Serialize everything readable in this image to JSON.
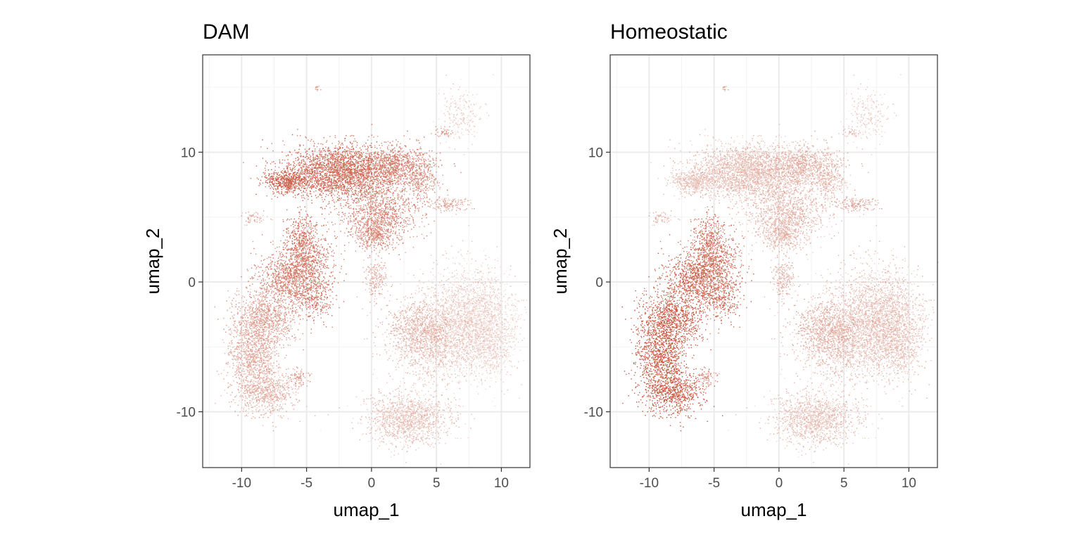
{
  "chart_data": [
    {
      "type": "scatter",
      "title": "DAM",
      "xlabel": "umap_1",
      "ylabel": "umap_2",
      "xlim": [
        -13,
        12.2
      ],
      "ylim": [
        -14.3,
        17.5
      ],
      "x_ticks": [
        -10,
        -5,
        0,
        5,
        10
      ],
      "x_tick_labels": [
        "-10",
        "-5",
        "0",
        "5",
        "10"
      ],
      "y_ticks": [
        -10,
        0,
        10
      ],
      "y_tick_labels": [
        "-10",
        "0",
        "10"
      ],
      "grid": true,
      "legend": "none",
      "color_low": "#f7f2f0",
      "color_high": "#c8553d",
      "regions": [
        {
          "x": -2.5,
          "y": 8.5,
          "sx": 2.2,
          "sy": 1.0,
          "n": 2600,
          "level": 0.82
        },
        {
          "x": -6.5,
          "y": 7.8,
          "sx": 0.9,
          "sy": 0.4,
          "n": 500,
          "level": 0.9
        },
        {
          "x": 2.0,
          "y": 9.0,
          "sx": 1.4,
          "sy": 0.8,
          "n": 800,
          "level": 0.7
        },
        {
          "x": 0.6,
          "y": 5.5,
          "sx": 1.6,
          "sy": 1.2,
          "n": 1000,
          "level": 0.68
        },
        {
          "x": 0.2,
          "y": 3.8,
          "sx": 0.7,
          "sy": 0.6,
          "n": 400,
          "level": 0.62
        },
        {
          "x": 3.8,
          "y": 7.8,
          "sx": 0.6,
          "sy": 0.6,
          "n": 220,
          "level": 0.55
        },
        {
          "x": 6.0,
          "y": 6.0,
          "sx": 1.0,
          "sy": 0.25,
          "n": 160,
          "level": 0.45
        },
        {
          "x": 6.8,
          "y": 13.0,
          "sx": 0.8,
          "sy": 1.0,
          "n": 240,
          "level": 0.2
        },
        {
          "x": 5.5,
          "y": 11.6,
          "sx": 0.4,
          "sy": 0.2,
          "n": 40,
          "level": 0.6
        },
        {
          "x": -9.0,
          "y": 5.0,
          "sx": 0.5,
          "sy": 0.25,
          "n": 60,
          "level": 0.45
        },
        {
          "x": -5.4,
          "y": 3.5,
          "sx": 0.6,
          "sy": 0.9,
          "n": 300,
          "level": 0.8
        },
        {
          "x": -5.0,
          "y": 1.5,
          "sx": 1.0,
          "sy": 1.2,
          "n": 700,
          "level": 0.78
        },
        {
          "x": -6.8,
          "y": 0.2,
          "sx": 1.1,
          "sy": 1.0,
          "n": 700,
          "level": 0.7
        },
        {
          "x": -4.5,
          "y": -1.3,
          "sx": 0.8,
          "sy": 0.8,
          "n": 300,
          "level": 0.78
        },
        {
          "x": -8.2,
          "y": -2.8,
          "sx": 1.2,
          "sy": 1.0,
          "n": 800,
          "level": 0.52
        },
        {
          "x": -9.2,
          "y": -5.5,
          "sx": 0.9,
          "sy": 1.6,
          "n": 1000,
          "level": 0.45
        },
        {
          "x": -8.2,
          "y": -8.5,
          "sx": 1.2,
          "sy": 0.9,
          "n": 700,
          "level": 0.4
        },
        {
          "x": -5.6,
          "y": -7.4,
          "sx": 0.4,
          "sy": 0.4,
          "n": 80,
          "level": 0.55
        },
        {
          "x": 0.3,
          "y": 0.2,
          "sx": 0.5,
          "sy": 0.9,
          "n": 200,
          "level": 0.42
        },
        {
          "x": 7.5,
          "y": -2.5,
          "sx": 1.8,
          "sy": 2.0,
          "n": 2000,
          "level": 0.2
        },
        {
          "x": 4.8,
          "y": -4.5,
          "sx": 1.6,
          "sy": 1.6,
          "n": 1300,
          "level": 0.3
        },
        {
          "x": 3.5,
          "y": -3.5,
          "sx": 1.2,
          "sy": 1.0,
          "n": 500,
          "level": 0.42
        },
        {
          "x": 9.0,
          "y": -4.5,
          "sx": 1.0,
          "sy": 1.6,
          "n": 800,
          "level": 0.18
        },
        {
          "x": 2.8,
          "y": -10.5,
          "sx": 1.6,
          "sy": 1.0,
          "n": 1300,
          "level": 0.3
        },
        {
          "x": -4.2,
          "y": 15.0,
          "sx": 0.15,
          "sy": 0.15,
          "n": 12,
          "level": 0.5
        }
      ]
    },
    {
      "type": "scatter",
      "title": "Homeostatic",
      "xlabel": "umap_1",
      "ylabel": "umap_2",
      "xlim": [
        -13,
        12.2
      ],
      "ylim": [
        -14.3,
        17.5
      ],
      "x_ticks": [
        -10,
        -5,
        0,
        5,
        10
      ],
      "x_tick_labels": [
        "-10",
        "-5",
        "0",
        "5",
        "10"
      ],
      "y_ticks": [
        -10,
        0,
        10
      ],
      "y_tick_labels": [
        "-10",
        "0",
        "10"
      ],
      "grid": true,
      "legend": "none",
      "color_low": "#f7f2f0",
      "color_high": "#c8553d",
      "regions": [
        {
          "x": -2.5,
          "y": 8.5,
          "sx": 2.2,
          "sy": 1.0,
          "n": 2600,
          "level": 0.32
        },
        {
          "x": -6.5,
          "y": 7.8,
          "sx": 0.9,
          "sy": 0.4,
          "n": 500,
          "level": 0.28
        },
        {
          "x": 2.0,
          "y": 9.0,
          "sx": 1.4,
          "sy": 0.8,
          "n": 800,
          "level": 0.4
        },
        {
          "x": 0.6,
          "y": 5.5,
          "sx": 1.6,
          "sy": 1.2,
          "n": 1000,
          "level": 0.38
        },
        {
          "x": 0.2,
          "y": 3.8,
          "sx": 0.7,
          "sy": 0.6,
          "n": 400,
          "level": 0.35
        },
        {
          "x": 3.8,
          "y": 7.8,
          "sx": 0.6,
          "sy": 0.6,
          "n": 220,
          "level": 0.35
        },
        {
          "x": 6.0,
          "y": 6.0,
          "sx": 1.0,
          "sy": 0.25,
          "n": 160,
          "level": 0.45
        },
        {
          "x": 6.8,
          "y": 13.0,
          "sx": 0.8,
          "sy": 1.0,
          "n": 240,
          "level": 0.2
        },
        {
          "x": 5.5,
          "y": 11.6,
          "sx": 0.4,
          "sy": 0.2,
          "n": 40,
          "level": 0.35
        },
        {
          "x": -9.0,
          "y": 5.0,
          "sx": 0.5,
          "sy": 0.25,
          "n": 60,
          "level": 0.4
        },
        {
          "x": -5.4,
          "y": 3.5,
          "sx": 0.6,
          "sy": 0.9,
          "n": 300,
          "level": 0.75
        },
        {
          "x": -5.0,
          "y": 1.5,
          "sx": 1.0,
          "sy": 1.2,
          "n": 700,
          "level": 0.82
        },
        {
          "x": -6.8,
          "y": 0.2,
          "sx": 1.1,
          "sy": 1.0,
          "n": 700,
          "level": 0.9
        },
        {
          "x": -4.5,
          "y": -1.3,
          "sx": 0.8,
          "sy": 0.8,
          "n": 300,
          "level": 0.85
        },
        {
          "x": -8.2,
          "y": -2.8,
          "sx": 1.2,
          "sy": 1.0,
          "n": 800,
          "level": 0.95
        },
        {
          "x": -9.2,
          "y": -5.5,
          "sx": 0.9,
          "sy": 1.6,
          "n": 1000,
          "level": 1.0
        },
        {
          "x": -8.2,
          "y": -8.5,
          "sx": 1.2,
          "sy": 0.9,
          "n": 700,
          "level": 1.0
        },
        {
          "x": -5.6,
          "y": -7.4,
          "sx": 0.4,
          "sy": 0.4,
          "n": 80,
          "level": 0.6
        },
        {
          "x": 0.3,
          "y": 0.2,
          "sx": 0.5,
          "sy": 0.9,
          "n": 200,
          "level": 0.4
        },
        {
          "x": 7.5,
          "y": -2.5,
          "sx": 1.8,
          "sy": 2.0,
          "n": 2000,
          "level": 0.3
        },
        {
          "x": 4.8,
          "y": -4.5,
          "sx": 1.6,
          "sy": 1.6,
          "n": 1300,
          "level": 0.32
        },
        {
          "x": 3.5,
          "y": -3.5,
          "sx": 1.2,
          "sy": 1.0,
          "n": 500,
          "level": 0.45
        },
        {
          "x": 9.0,
          "y": -4.5,
          "sx": 1.0,
          "sy": 1.6,
          "n": 800,
          "level": 0.3
        },
        {
          "x": 2.8,
          "y": -10.5,
          "sx": 1.6,
          "sy": 1.0,
          "n": 1300,
          "level": 0.3
        },
        {
          "x": -4.2,
          "y": 15.0,
          "sx": 0.15,
          "sy": 0.15,
          "n": 12,
          "level": 0.45
        }
      ]
    }
  ]
}
